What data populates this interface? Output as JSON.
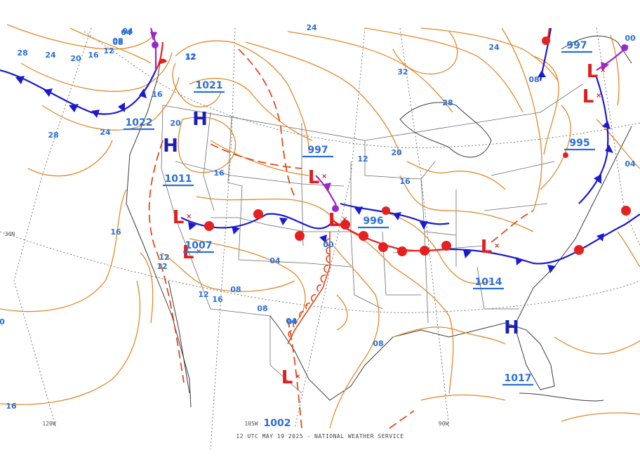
{
  "footer": "12 UTC MAY 19 2025 - NATIONAL WEATHER SERVICE",
  "colors": {
    "isobar": "#e0892a",
    "cold_front": "#1a1ad0",
    "warm_front": "#e62020",
    "occluded": "#9a28c8",
    "trough": "#e24a1c",
    "high": "#1d1db8",
    "low": "#e02020",
    "label": "#2b6fd6",
    "coast": "#3a3a3a",
    "border": "#6a6a6a"
  },
  "pressure_labels": [
    {
      "text": "1021"
    },
    {
      "text": "1022"
    },
    {
      "text": "1011"
    },
    {
      "text": "1007"
    },
    {
      "text": "997"
    },
    {
      "text": "996"
    },
    {
      "text": "1014"
    },
    {
      "text": "1017"
    },
    {
      "text": "997"
    },
    {
      "text": "995"
    },
    {
      "text": "1002"
    }
  ],
  "contour_labels": [
    "28",
    "24",
    "20",
    "16",
    "12",
    "08",
    "04",
    "12",
    "16",
    "28",
    "24",
    "20",
    "16",
    "24",
    "32",
    "28",
    "24",
    "20",
    "12",
    "16",
    "00",
    "08",
    "04",
    "04",
    "08",
    "08",
    "12",
    "12",
    "12",
    "16",
    "16",
    "12",
    "04",
    "08",
    "04",
    "00",
    "16",
    "08",
    "04",
    "0"
  ],
  "coord_labels": [
    "30N",
    "120W",
    "105W",
    "90W"
  ],
  "centers": [
    {
      "type": "H"
    },
    {
      "type": "H"
    },
    {
      "type": "H"
    },
    {
      "type": "L"
    },
    {
      "type": "L"
    },
    {
      "type": "L"
    },
    {
      "type": "L"
    },
    {
      "type": "L"
    },
    {
      "type": "L"
    },
    {
      "type": "L"
    },
    {
      "type": "L"
    }
  ]
}
